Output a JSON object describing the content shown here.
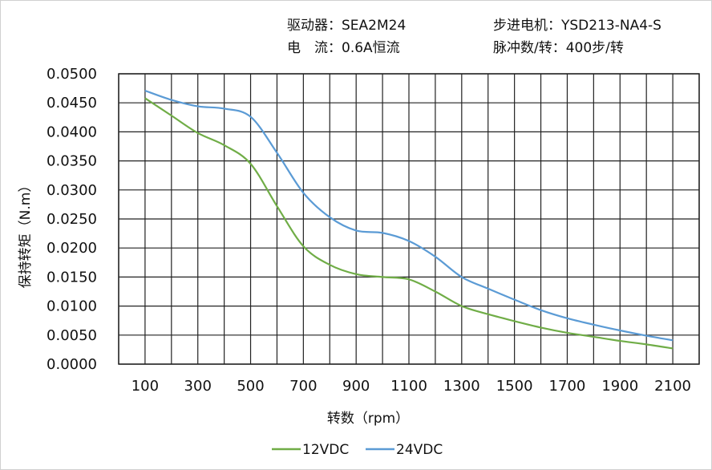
{
  "header": {
    "driver": "驱动器：SEA2M24",
    "current": "电　流：0.6A恒流",
    "motor": "步进电机：YSD213-NA4-S",
    "pulses": "脉冲数/转：400步/转"
  },
  "chart_data": {
    "type": "line",
    "xlabel": "转数（rpm）",
    "ylabel": "保持转矩（N.m）",
    "xlim": [
      0,
      2200
    ],
    "ylim": [
      0,
      0.05
    ],
    "grid": true,
    "legend_position": "bottom",
    "x_ticks": [
      "100",
      "300",
      "500",
      "700",
      "900",
      "1100",
      "1300",
      "1500",
      "1700",
      "1900",
      "2100"
    ],
    "y_ticks": [
      "0.0000",
      "0.0050",
      "0.0100",
      "0.0150",
      "0.0200",
      "0.0250",
      "0.0300",
      "0.0350",
      "0.0400",
      "0.0450",
      "0.0500"
    ],
    "x": [
      100,
      200,
      300,
      400,
      500,
      600,
      700,
      800,
      900,
      1000,
      1100,
      1200,
      1300,
      1400,
      1500,
      1600,
      1700,
      1800,
      1900,
      2000,
      2100
    ],
    "series": [
      {
        "name": "12VDC",
        "color": "#70ad47",
        "values": [
          0.0458,
          0.0428,
          0.0398,
          0.0377,
          0.0345,
          0.0272,
          0.0203,
          0.0171,
          0.0155,
          0.015,
          0.0146,
          0.0125,
          0.01,
          0.0086,
          0.0074,
          0.0063,
          0.0054,
          0.0047,
          0.004,
          0.0034,
          0.0027
        ]
      },
      {
        "name": "24VDC",
        "color": "#5b9bd5",
        "values": [
          0.0471,
          0.0455,
          0.0444,
          0.044,
          0.0426,
          0.0364,
          0.0295,
          0.0253,
          0.023,
          0.0226,
          0.0212,
          0.0185,
          0.015,
          0.013,
          0.0111,
          0.0093,
          0.0079,
          0.0068,
          0.0058,
          0.0049,
          0.0041
        ]
      }
    ]
  }
}
